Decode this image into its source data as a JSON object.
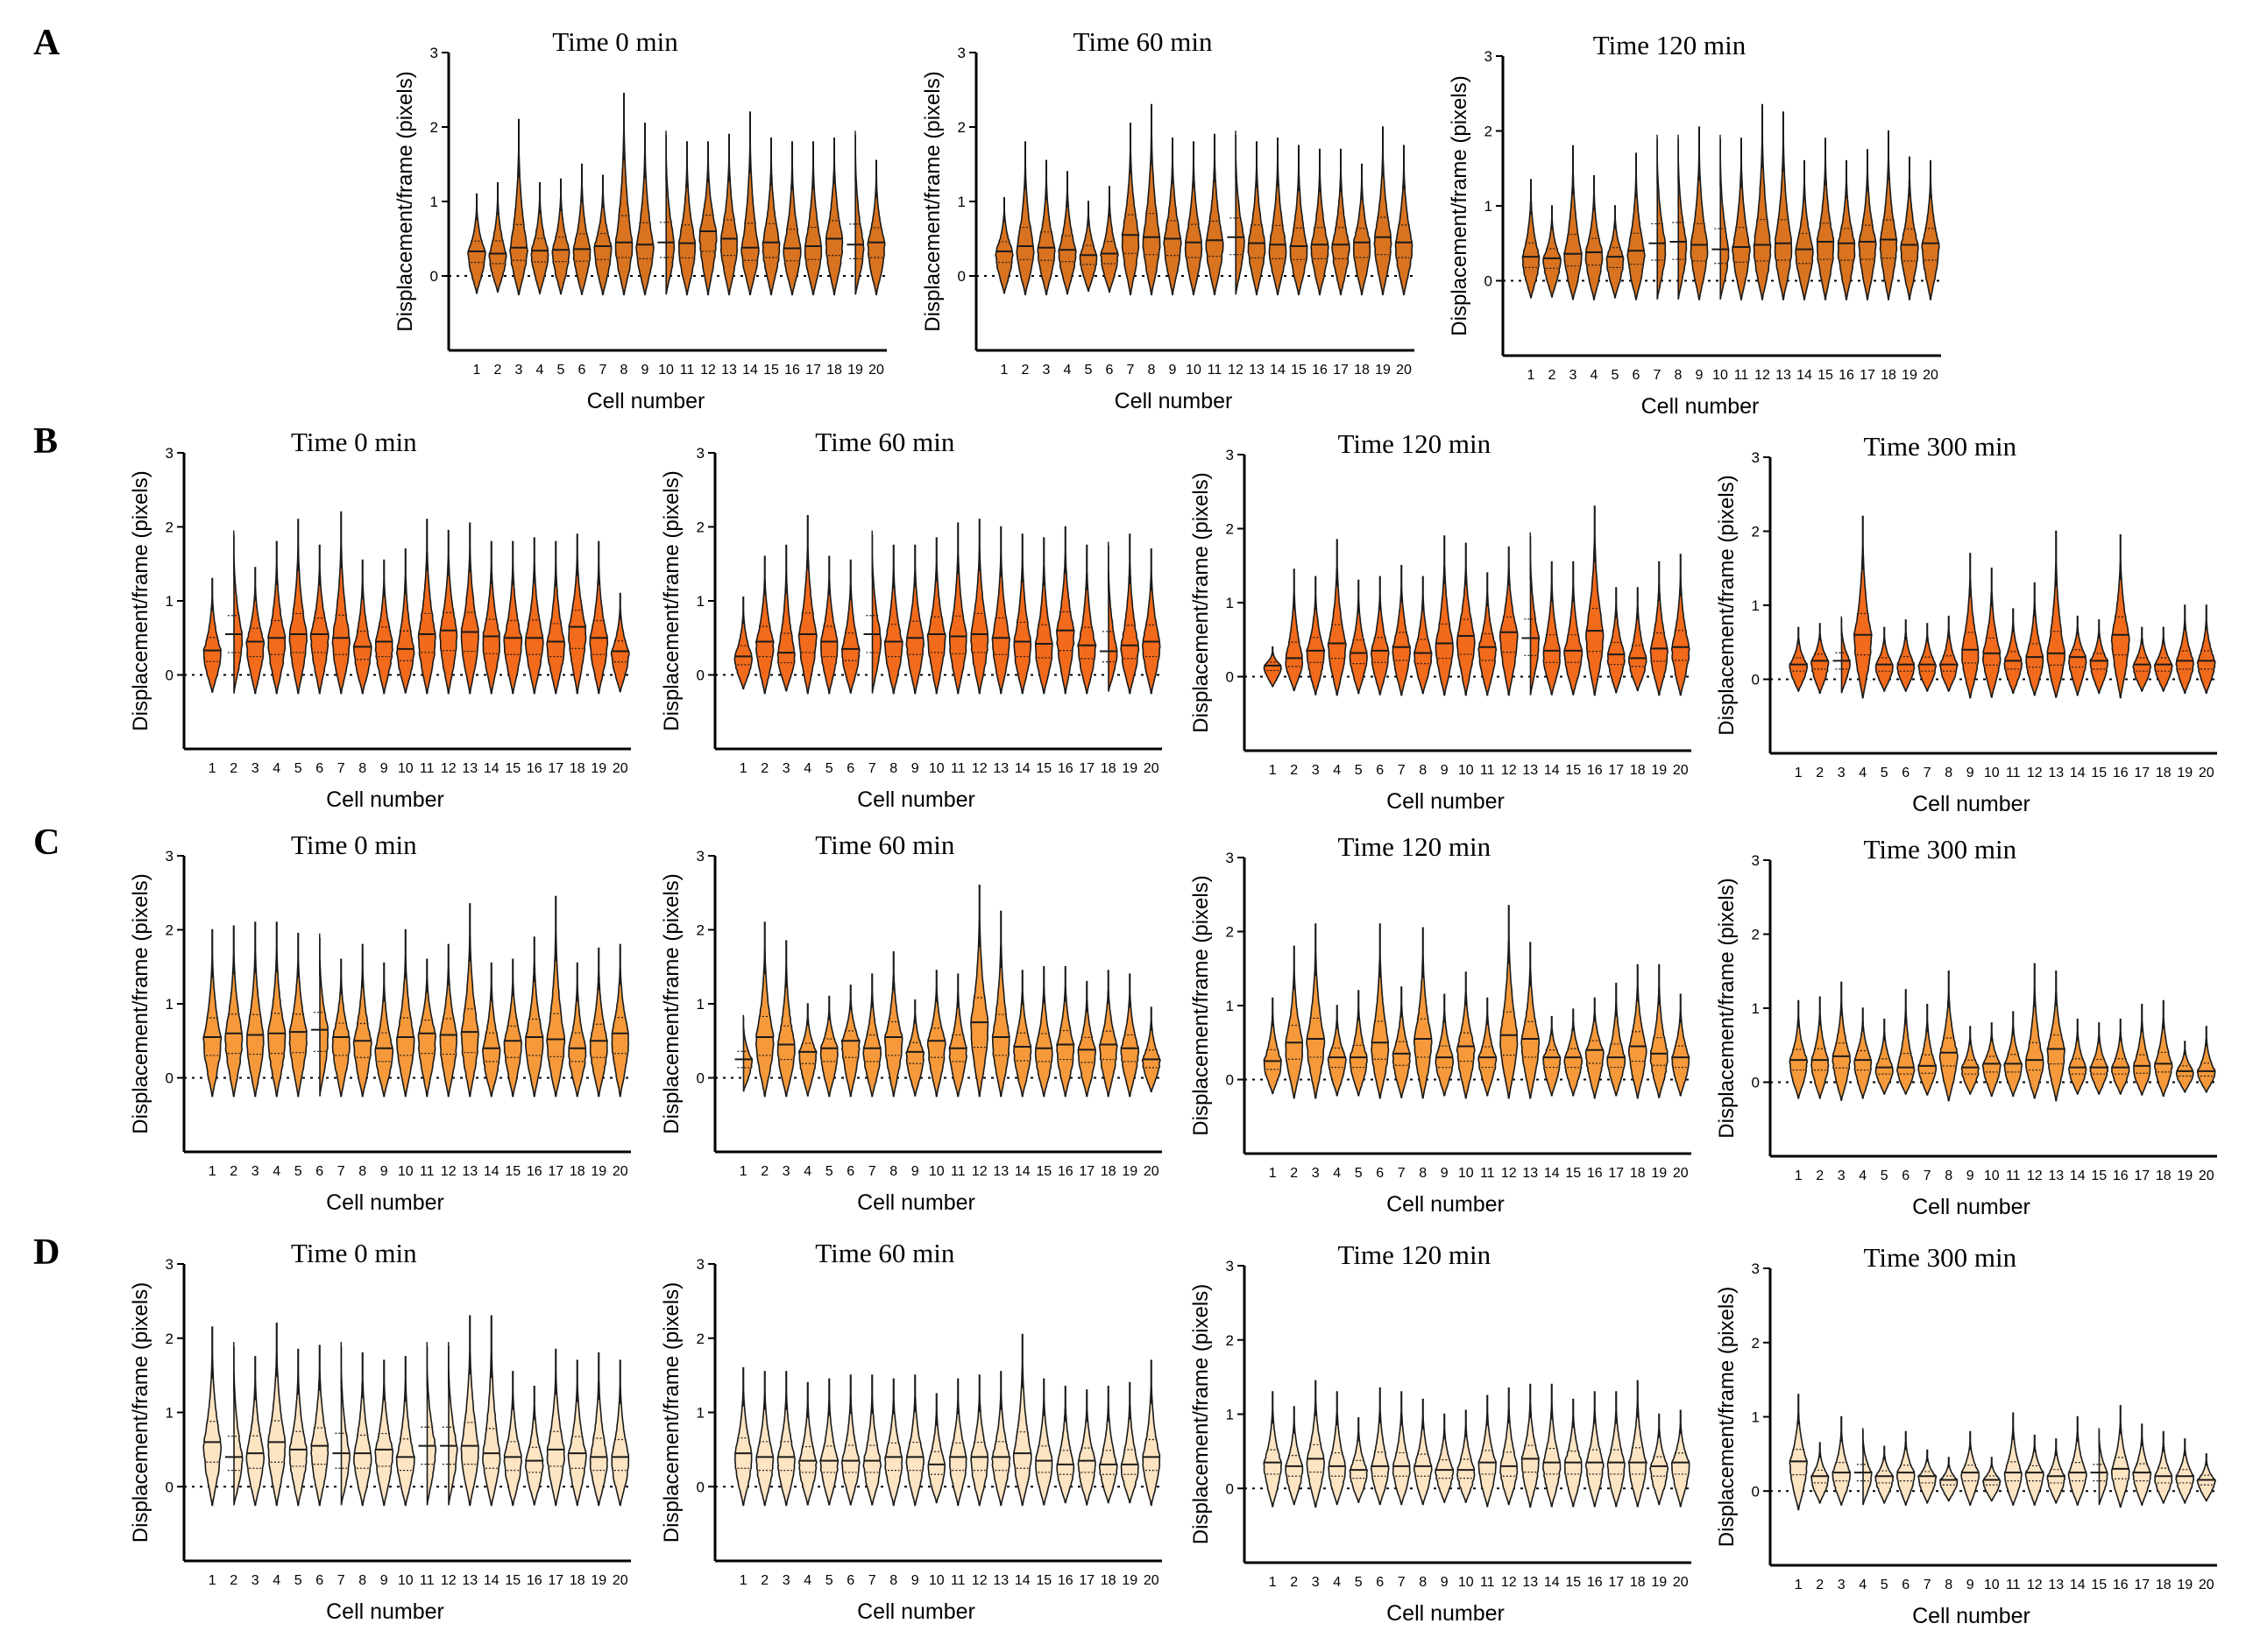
{
  "row_labels": [
    "A",
    "B",
    "C",
    "D"
  ],
  "chart_data": [
    {
      "id": "A1",
      "row": "A",
      "type": "violin",
      "title": "Time 0 min",
      "xlabel": "Cell number",
      "ylabel": "Displacement/frame (pixels)",
      "ylim": [
        0,
        3
      ],
      "yticks": [
        0,
        1,
        2,
        3
      ],
      "categories": [
        1,
        2,
        3,
        4,
        5,
        6,
        7,
        8,
        9,
        10,
        11,
        12,
        13,
        14,
        15,
        16,
        17,
        18,
        19,
        20
      ],
      "color": "#d9731f",
      "medians": [
        0.33,
        0.3,
        0.38,
        0.34,
        0.35,
        0.36,
        0.4,
        0.45,
        0.42,
        0.45,
        0.44,
        0.6,
        0.5,
        0.38,
        0.45,
        0.37,
        0.4,
        0.5,
        0.42,
        0.45
      ],
      "maxima": [
        1.1,
        1.25,
        2.1,
        1.25,
        1.3,
        1.5,
        1.35,
        2.45,
        2.05,
        1.95,
        1.8,
        1.8,
        1.9,
        2.2,
        1.85,
        1.8,
        1.8,
        1.85,
        1.95,
        1.55
      ]
    },
    {
      "id": "A2",
      "row": "A",
      "type": "violin",
      "title": "Time 60 min",
      "xlabel": "Cell number",
      "ylabel": "Displacement/frame (pixels)",
      "ylim": [
        0,
        3
      ],
      "yticks": [
        0,
        1,
        2,
        3
      ],
      "categories": [
        1,
        2,
        3,
        4,
        5,
        6,
        7,
        8,
        9,
        10,
        11,
        12,
        13,
        14,
        15,
        16,
        17,
        18,
        19,
        20
      ],
      "color": "#d9731f",
      "medians": [
        0.33,
        0.4,
        0.38,
        0.35,
        0.28,
        0.3,
        0.55,
        0.52,
        0.5,
        0.45,
        0.48,
        0.52,
        0.44,
        0.42,
        0.4,
        0.42,
        0.42,
        0.45,
        0.52,
        0.45
      ],
      "maxima": [
        1.05,
        1.8,
        1.55,
        1.4,
        1.0,
        1.2,
        2.05,
        2.3,
        1.85,
        1.8,
        1.9,
        1.95,
        1.8,
        1.85,
        1.75,
        1.7,
        1.7,
        1.5,
        2.0,
        1.75
      ]
    },
    {
      "id": "A3",
      "row": "A",
      "type": "violin",
      "title": "Time 120 min",
      "xlabel": "Cell number",
      "ylabel": "Displacement/frame (pixels)",
      "ylim": [
        0,
        3
      ],
      "yticks": [
        0,
        1,
        2,
        3
      ],
      "categories": [
        1,
        2,
        3,
        4,
        5,
        6,
        7,
        8,
        9,
        10,
        11,
        12,
        13,
        14,
        15,
        16,
        17,
        18,
        19,
        20
      ],
      "color": "#d9731f",
      "medians": [
        0.32,
        0.3,
        0.36,
        0.38,
        0.32,
        0.4,
        0.5,
        0.52,
        0.48,
        0.42,
        0.45,
        0.48,
        0.5,
        0.42,
        0.52,
        0.5,
        0.52,
        0.55,
        0.48,
        0.5
      ],
      "maxima": [
        1.35,
        1.0,
        1.8,
        1.4,
        1.0,
        1.7,
        1.95,
        1.95,
        2.05,
        1.95,
        1.9,
        2.35,
        2.25,
        1.6,
        1.9,
        1.6,
        1.75,
        2.0,
        1.65,
        1.6
      ]
    },
    {
      "id": "B1",
      "row": "B",
      "type": "violin",
      "title": "Time 0 min",
      "xlabel": "Cell number",
      "ylabel": "Displacement/frame (pixels)",
      "ylim": [
        0,
        3
      ],
      "yticks": [
        0,
        1,
        2,
        3
      ],
      "categories": [
        1,
        2,
        3,
        4,
        5,
        6,
        7,
        8,
        9,
        10,
        11,
        12,
        13,
        14,
        15,
        16,
        17,
        18,
        19,
        20
      ],
      "color": "#f26a1b",
      "medians": [
        0.33,
        0.55,
        0.45,
        0.5,
        0.55,
        0.55,
        0.5,
        0.38,
        0.45,
        0.35,
        0.55,
        0.6,
        0.58,
        0.52,
        0.5,
        0.5,
        0.45,
        0.65,
        0.5,
        0.32
      ],
      "maxima": [
        1.3,
        1.95,
        1.45,
        1.8,
        2.1,
        1.75,
        2.2,
        1.55,
        1.55,
        1.7,
        2.1,
        1.95,
        2.05,
        1.8,
        1.8,
        1.85,
        1.8,
        1.9,
        1.8,
        1.1
      ]
    },
    {
      "id": "B2",
      "row": "B",
      "type": "violin",
      "title": "Time 60 min",
      "xlabel": "Cell number",
      "ylabel": "Displacement/frame (pixels)",
      "ylim": [
        0,
        3
      ],
      "yticks": [
        0,
        1,
        2,
        3
      ],
      "categories": [
        1,
        2,
        3,
        4,
        5,
        6,
        7,
        8,
        9,
        10,
        11,
        12,
        13,
        14,
        15,
        16,
        17,
        18,
        19,
        20
      ],
      "color": "#f26a1b",
      "medians": [
        0.25,
        0.45,
        0.3,
        0.55,
        0.45,
        0.35,
        0.55,
        0.45,
        0.5,
        0.55,
        0.52,
        0.55,
        0.5,
        0.45,
        0.42,
        0.6,
        0.4,
        0.32,
        0.4,
        0.45
      ],
      "maxima": [
        1.05,
        1.6,
        1.75,
        2.15,
        1.6,
        1.55,
        1.95,
        1.75,
        1.75,
        1.85,
        2.05,
        2.1,
        2.0,
        1.9,
        1.85,
        2.0,
        1.75,
        1.8,
        1.9,
        1.7
      ]
    },
    {
      "id": "B3",
      "row": "B",
      "type": "violin",
      "title": "Time 120 min",
      "xlabel": "Cell number",
      "ylabel": "Displacement/frame (pixels)",
      "ylim": [
        0,
        3
      ],
      "yticks": [
        0,
        1,
        2,
        3
      ],
      "categories": [
        1,
        2,
        3,
        4,
        5,
        6,
        7,
        8,
        9,
        10,
        11,
        12,
        13,
        14,
        15,
        16,
        17,
        18,
        19,
        20
      ],
      "color": "#f26a1b",
      "medians": [
        0.15,
        0.25,
        0.35,
        0.45,
        0.32,
        0.35,
        0.4,
        0.32,
        0.45,
        0.55,
        0.4,
        0.6,
        0.52,
        0.35,
        0.35,
        0.62,
        0.3,
        0.25,
        0.38,
        0.4
      ],
      "maxima": [
        0.4,
        1.45,
        1.35,
        1.85,
        1.3,
        1.35,
        1.5,
        1.35,
        1.9,
        1.8,
        1.4,
        1.75,
        1.95,
        1.55,
        1.55,
        2.3,
        1.2,
        1.2,
        1.55,
        1.65
      ]
    },
    {
      "id": "B4",
      "row": "B",
      "type": "violin",
      "title": "Time 300 min",
      "xlabel": "Cell number",
      "ylabel": "Displacement/frame (pixels)",
      "ylim": [
        0,
        3
      ],
      "yticks": [
        0,
        1,
        2,
        3
      ],
      "categories": [
        1,
        2,
        3,
        4,
        5,
        6,
        7,
        8,
        9,
        10,
        11,
        12,
        13,
        14,
        15,
        16,
        17,
        18,
        19,
        20
      ],
      "color": "#f26a1b",
      "medians": [
        0.2,
        0.25,
        0.25,
        0.6,
        0.2,
        0.2,
        0.2,
        0.2,
        0.4,
        0.35,
        0.25,
        0.3,
        0.35,
        0.3,
        0.25,
        0.6,
        0.2,
        0.2,
        0.25,
        0.25
      ],
      "maxima": [
        0.7,
        0.75,
        0.85,
        2.2,
        0.7,
        0.8,
        0.75,
        0.85,
        1.7,
        1.5,
        0.95,
        1.3,
        2.0,
        0.85,
        0.8,
        1.95,
        0.7,
        0.7,
        1.0,
        1.0
      ]
    },
    {
      "id": "C1",
      "row": "C",
      "type": "violin",
      "title": "Time 0 min",
      "xlabel": "Cell number",
      "ylabel": "Displacement/frame (pixels)",
      "ylim": [
        0,
        3
      ],
      "yticks": [
        0,
        1,
        2,
        3
      ],
      "categories": [
        1,
        2,
        3,
        4,
        5,
        6,
        7,
        8,
        9,
        10,
        11,
        12,
        13,
        14,
        15,
        16,
        17,
        18,
        19,
        20
      ],
      "color": "#f5993b",
      "medians": [
        0.55,
        0.6,
        0.58,
        0.6,
        0.62,
        0.65,
        0.55,
        0.5,
        0.4,
        0.55,
        0.6,
        0.58,
        0.62,
        0.4,
        0.5,
        0.55,
        0.52,
        0.4,
        0.5,
        0.6
      ],
      "maxima": [
        2.0,
        2.05,
        2.1,
        2.1,
        1.95,
        1.95,
        1.6,
        1.8,
        1.55,
        2.0,
        1.6,
        1.8,
        2.35,
        1.55,
        1.6,
        1.9,
        2.45,
        1.55,
        1.75,
        1.8
      ]
    },
    {
      "id": "C2",
      "row": "C",
      "type": "violin",
      "title": "Time 60 min",
      "xlabel": "Cell number",
      "ylabel": "Displacement/frame (pixels)",
      "ylim": [
        0,
        3
      ],
      "yticks": [
        0,
        1,
        2,
        3
      ],
      "categories": [
        1,
        2,
        3,
        4,
        5,
        6,
        7,
        8,
        9,
        10,
        11,
        12,
        13,
        14,
        15,
        16,
        17,
        18,
        19,
        20
      ],
      "color": "#f5993b",
      "medians": [
        0.25,
        0.55,
        0.45,
        0.35,
        0.4,
        0.5,
        0.4,
        0.55,
        0.35,
        0.5,
        0.4,
        0.75,
        0.55,
        0.42,
        0.4,
        0.45,
        0.38,
        0.45,
        0.4,
        0.25
      ],
      "maxima": [
        0.85,
        2.1,
        1.85,
        1.0,
        1.1,
        1.25,
        1.4,
        1.7,
        1.05,
        1.45,
        1.4,
        2.6,
        2.25,
        1.45,
        1.5,
        1.5,
        1.3,
        1.45,
        1.4,
        0.95
      ]
    },
    {
      "id": "C3",
      "row": "C",
      "type": "violin",
      "title": "Time 120 min",
      "xlabel": "Cell number",
      "ylabel": "Displacement/frame (pixels)",
      "ylim": [
        0,
        3
      ],
      "yticks": [
        0,
        1,
        2,
        3
      ],
      "categories": [
        1,
        2,
        3,
        4,
        5,
        6,
        7,
        8,
        9,
        10,
        11,
        12,
        13,
        14,
        15,
        16,
        17,
        18,
        19,
        20
      ],
      "color": "#f5993b",
      "medians": [
        0.25,
        0.5,
        0.55,
        0.3,
        0.3,
        0.5,
        0.35,
        0.55,
        0.3,
        0.45,
        0.3,
        0.6,
        0.55,
        0.3,
        0.3,
        0.4,
        0.3,
        0.45,
        0.35,
        0.3
      ],
      "maxima": [
        1.1,
        1.8,
        2.1,
        1.0,
        1.2,
        2.1,
        1.25,
        2.05,
        1.15,
        1.45,
        1.1,
        2.35,
        1.85,
        0.85,
        0.95,
        1.1,
        1.3,
        1.55,
        1.55,
        1.15
      ]
    },
    {
      "id": "C4",
      "row": "C",
      "type": "violin",
      "title": "Time 300 min",
      "xlabel": "Cell number",
      "ylabel": "Displacement/frame (pixels)",
      "ylim": [
        0,
        3
      ],
      "yticks": [
        0,
        1,
        2,
        3
      ],
      "categories": [
        1,
        2,
        3,
        4,
        5,
        6,
        7,
        8,
        9,
        10,
        11,
        12,
        13,
        14,
        15,
        16,
        17,
        18,
        19,
        20
      ],
      "color": "#f5993b",
      "medians": [
        0.3,
        0.3,
        0.35,
        0.3,
        0.2,
        0.2,
        0.22,
        0.4,
        0.2,
        0.25,
        0.25,
        0.3,
        0.45,
        0.2,
        0.2,
        0.2,
        0.22,
        0.25,
        0.15,
        0.15
      ],
      "maxima": [
        1.1,
        1.15,
        1.35,
        1.0,
        0.85,
        1.25,
        1.05,
        1.5,
        0.75,
        0.8,
        0.95,
        1.6,
        1.5,
        0.85,
        0.8,
        0.85,
        1.05,
        1.1,
        0.55,
        0.75
      ]
    },
    {
      "id": "D1",
      "row": "D",
      "type": "violin",
      "title": "Time 0 min",
      "xlabel": "Cell number",
      "ylabel": "Displacement/frame (pixels)",
      "ylim": [
        0,
        3
      ],
      "yticks": [
        0,
        1,
        2,
        3
      ],
      "categories": [
        1,
        2,
        3,
        4,
        5,
        6,
        7,
        8,
        9,
        10,
        11,
        12,
        13,
        14,
        15,
        16,
        17,
        18,
        19,
        20
      ],
      "color": "#fde4c2",
      "medians": [
        0.6,
        0.4,
        0.45,
        0.6,
        0.5,
        0.55,
        0.45,
        0.45,
        0.5,
        0.4,
        0.55,
        0.55,
        0.55,
        0.45,
        0.4,
        0.35,
        0.5,
        0.45,
        0.4,
        0.4
      ],
      "maxima": [
        2.15,
        1.95,
        1.75,
        2.2,
        1.85,
        1.9,
        1.95,
        1.8,
        1.7,
        1.75,
        1.95,
        1.95,
        2.3,
        2.3,
        1.55,
        1.35,
        1.85,
        1.7,
        1.8,
        1.7
      ]
    },
    {
      "id": "D2",
      "row": "D",
      "type": "violin",
      "title": "Time 60 min",
      "xlabel": "Cell number",
      "ylabel": "Displacement/frame (pixels)",
      "ylim": [
        0,
        3
      ],
      "yticks": [
        0,
        1,
        2,
        3
      ],
      "categories": [
        1,
        2,
        3,
        4,
        5,
        6,
        7,
        8,
        9,
        10,
        11,
        12,
        13,
        14,
        15,
        16,
        17,
        18,
        19,
        20
      ],
      "color": "#fde4c2",
      "medians": [
        0.45,
        0.4,
        0.4,
        0.35,
        0.35,
        0.35,
        0.35,
        0.4,
        0.4,
        0.3,
        0.4,
        0.4,
        0.4,
        0.45,
        0.35,
        0.3,
        0.35,
        0.3,
        0.3,
        0.4
      ],
      "maxima": [
        1.6,
        1.55,
        1.55,
        1.4,
        1.45,
        1.5,
        1.5,
        1.45,
        1.5,
        1.25,
        1.45,
        1.5,
        1.55,
        2.05,
        1.45,
        1.35,
        1.3,
        1.35,
        1.4,
        1.7
      ]
    },
    {
      "id": "D3",
      "row": "D",
      "type": "violin",
      "title": "Time 120 min",
      "xlabel": "Cell number",
      "ylabel": "Displacement/frame (pixels)",
      "ylim": [
        0,
        3
      ],
      "yticks": [
        0,
        1,
        2,
        3
      ],
      "categories": [
        1,
        2,
        3,
        4,
        5,
        6,
        7,
        8,
        9,
        10,
        11,
        12,
        13,
        14,
        15,
        16,
        17,
        18,
        19,
        20
      ],
      "color": "#fde4c2",
      "medians": [
        0.35,
        0.3,
        0.4,
        0.3,
        0.25,
        0.3,
        0.3,
        0.3,
        0.25,
        0.25,
        0.35,
        0.3,
        0.4,
        0.35,
        0.35,
        0.35,
        0.35,
        0.35,
        0.3,
        0.35
      ],
      "maxima": [
        1.3,
        1.1,
        1.45,
        1.3,
        0.95,
        1.35,
        1.3,
        1.2,
        1.0,
        1.05,
        1.25,
        1.35,
        1.4,
        1.4,
        1.2,
        1.3,
        1.3,
        1.45,
        1.0,
        1.05
      ]
    },
    {
      "id": "D4",
      "row": "D",
      "type": "violin",
      "title": "Time 300 min",
      "xlabel": "Cell number",
      "ylabel": "Displacement/frame (pixels)",
      "ylim": [
        0,
        3
      ],
      "yticks": [
        0,
        1,
        2,
        3
      ],
      "categories": [
        1,
        2,
        3,
        4,
        5,
        6,
        7,
        8,
        9,
        10,
        11,
        12,
        13,
        14,
        15,
        16,
        17,
        18,
        19,
        20
      ],
      "color": "#fde4c2",
      "medians": [
        0.4,
        0.2,
        0.25,
        0.25,
        0.2,
        0.25,
        0.2,
        0.15,
        0.25,
        0.15,
        0.25,
        0.25,
        0.2,
        0.25,
        0.25,
        0.3,
        0.25,
        0.2,
        0.2,
        0.15
      ],
      "maxima": [
        1.3,
        0.65,
        1.0,
        0.85,
        0.6,
        0.8,
        0.55,
        0.45,
        0.8,
        0.45,
        1.05,
        0.75,
        0.7,
        1.0,
        0.85,
        1.15,
        0.9,
        0.8,
        0.7,
        0.5
      ]
    }
  ]
}
